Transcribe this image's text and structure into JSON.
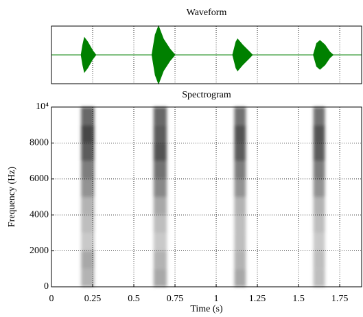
{
  "chart_data": [
    {
      "type": "waveform",
      "title": "Waveform",
      "color": "#008000",
      "x": [
        0,
        0.18,
        0.19,
        0.2,
        0.22,
        0.25,
        0.27,
        0.61,
        0.63,
        0.65,
        0.68,
        0.72,
        0.75,
        1.1,
        1.12,
        1.13,
        1.16,
        1.2,
        1.22,
        1.59,
        1.61,
        1.63,
        1.66,
        1.69,
        1.71,
        1.883
      ],
      "values": [
        0,
        0,
        0.35,
        0.6,
        0.45,
        0.15,
        0,
        0,
        0.7,
        1.0,
        0.55,
        0.2,
        0,
        0,
        0.45,
        0.55,
        0.35,
        0.12,
        0,
        0,
        0.4,
        0.5,
        0.35,
        0.1,
        0,
        0
      ],
      "xlim": [
        0,
        1.883
      ],
      "ylim": [
        -1,
        1
      ],
      "grid": true
    },
    {
      "type": "spectrogram",
      "title": "Spectrogram",
      "xlabel": "Time (s)",
      "ylabel": "Frequency (Hz)",
      "xlim": [
        0,
        1.883
      ],
      "ylim": [
        0,
        10000
      ],
      "xticks": [
        0,
        0.25,
        0.5,
        0.75,
        1,
        1.25,
        1.5,
        1.75
      ],
      "yticks": [
        0,
        2000,
        4000,
        6000,
        8000,
        {
          "value": 10000,
          "label": "10⁴"
        }
      ],
      "grid": true,
      "freq_bins": [
        0,
        1000,
        2000,
        3000,
        4000,
        5000,
        6000,
        7000,
        8000,
        9000,
        10000
      ],
      "bursts": [
        {
          "start": 0.18,
          "end": 0.26,
          "intensity": [
            0.35,
            0.4,
            0.25,
            0.3,
            0.35,
            0.5,
            0.6,
            0.75,
            0.85,
            0.7
          ]
        },
        {
          "start": 0.62,
          "end": 0.7,
          "intensity": [
            0.4,
            0.35,
            0.25,
            0.3,
            0.4,
            0.55,
            0.65,
            0.8,
            0.75,
            0.7
          ]
        },
        {
          "start": 1.11,
          "end": 1.18,
          "intensity": [
            0.4,
            0.35,
            0.3,
            0.3,
            0.35,
            0.5,
            0.6,
            0.75,
            0.8,
            0.65
          ]
        },
        {
          "start": 1.59,
          "end": 1.66,
          "intensity": [
            0.3,
            0.3,
            0.25,
            0.3,
            0.35,
            0.5,
            0.6,
            0.75,
            0.8,
            0.65
          ]
        }
      ]
    }
  ]
}
